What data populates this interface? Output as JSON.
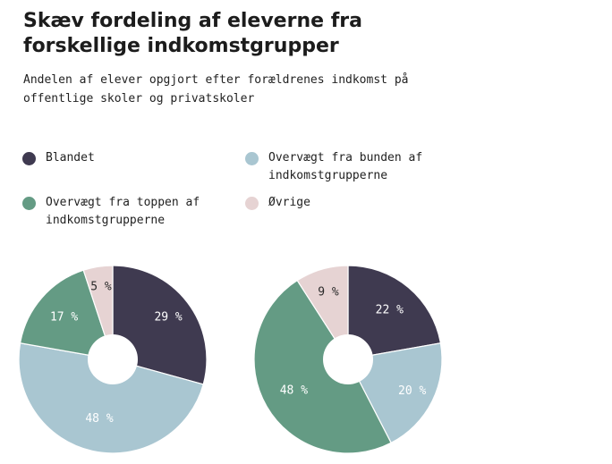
{
  "title": "Skæv fordeling af eleverne fra forskellige indkomstgrupper",
  "subtitle": "Andelen af elever opgjort efter forældrenes indkomst på offentlige skoler og privatskoler",
  "legend": [
    {
      "label": "Blandet",
      "color": "#3f3a50"
    },
    {
      "label": "Overvægt fra bunden af indkomstgrupperne",
      "color": "#a9c6d1"
    },
    {
      "label": "Overvægt fra toppen af indkomstgrupperne",
      "color": "#649b84"
    },
    {
      "label": "Øvrige",
      "color": "#e6d3d3"
    }
  ],
  "chart_data": [
    {
      "type": "pie",
      "donut": true,
      "slices": [
        {
          "label": "Blandet",
          "value": 29,
          "display": "29 %",
          "color": "#3f3a50",
          "text_color": "#ffffff"
        },
        {
          "label": "Overvægt fra bunden af indkomstgrupperne",
          "value": 48,
          "display": "48 %",
          "color": "#a9c6d1",
          "text_color": "#ffffff"
        },
        {
          "label": "Overvægt fra toppen af indkomstgrupperne",
          "value": 17,
          "display": "17 %",
          "color": "#649b84",
          "text_color": "#ffffff"
        },
        {
          "label": "Øvrige",
          "value": 5,
          "display": "5 %",
          "color": "#e6d3d3",
          "text_color": "#2a2a2a"
        }
      ]
    },
    {
      "type": "pie",
      "donut": true,
      "slices": [
        {
          "label": "Blandet",
          "value": 22,
          "display": "22 %",
          "color": "#3f3a50",
          "text_color": "#ffffff"
        },
        {
          "label": "Overvægt fra bunden af indkomstgrupperne",
          "value": 20,
          "display": "20 %",
          "color": "#a9c6d1",
          "text_color": "#ffffff"
        },
        {
          "label": "Overvægt fra toppen af indkomstgrupperne",
          "value": 48,
          "display": "48 %",
          "color": "#649b84",
          "text_color": "#ffffff"
        },
        {
          "label": "Øvrige",
          "value": 9,
          "display": "9 %",
          "color": "#e6d3d3",
          "text_color": "#2a2a2a"
        }
      ]
    }
  ]
}
